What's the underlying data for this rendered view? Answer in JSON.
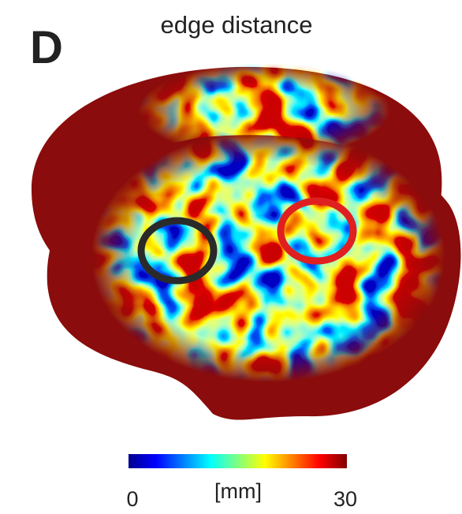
{
  "panel_label": "D",
  "title": "edge distance",
  "colorbar": {
    "label": "[mm]",
    "ticks": [
      0,
      30
    ]
  }
}
